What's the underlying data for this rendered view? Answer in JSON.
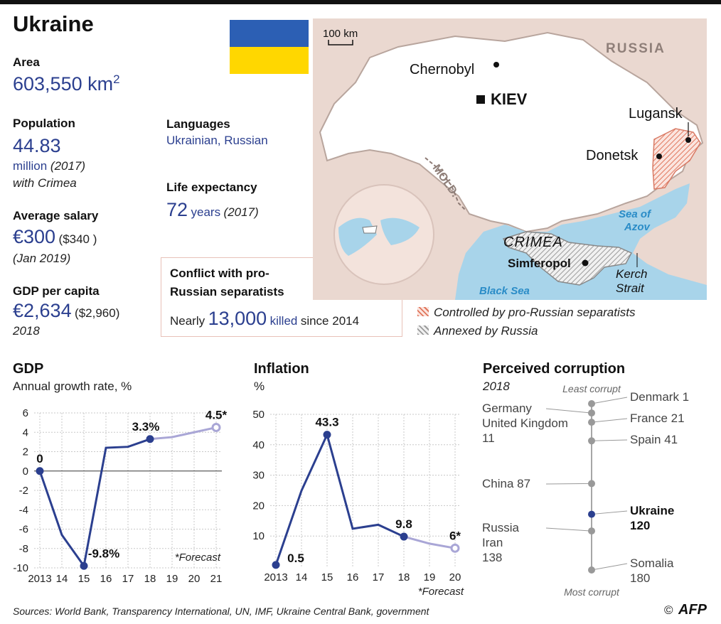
{
  "title": "Ukraine",
  "colors": {
    "accent": "#2b3f8f",
    "forecast": "#a9a6d6",
    "flag_blue": "#2c5fb4",
    "flag_yellow": "#ffd700",
    "sea": "#a8d4ea",
    "land": "#ead8d0"
  },
  "stats": {
    "area_label": "Area",
    "area_value": "603,550 km",
    "area_sup": "2",
    "pop_label": "Population",
    "pop_value": "44.83",
    "pop_unit": "million",
    "pop_year": "(2017)",
    "pop_note": "with Crimea",
    "lang_label": "Languages",
    "lang_value": "Ukrainian, Russian",
    "life_label": "Life expectancy",
    "life_value": "72",
    "life_unit": "years",
    "life_year": "(2017)",
    "salary_label": "Average salary",
    "salary_value": "€300",
    "salary_usd": "($340 )",
    "salary_date": "(Jan 2019)",
    "gdppc_label": "GDP per capita",
    "gdppc_value": "€2,634",
    "gdppc_usd": "($2,960)",
    "gdppc_year": "2018"
  },
  "conflict": {
    "title_line1": "Conflict with pro-",
    "title_line2": "Russian separatists",
    "pre": "Nearly",
    "number": "13,000",
    "killed": "killed",
    "post": "since 2014"
  },
  "map": {
    "scale": "100 km",
    "russia": "RUSSIA",
    "chernobyl": "Chernobyl",
    "kiev": "KIEV",
    "lugansk": "Lugansk",
    "donetsk": "Donetsk",
    "mold": "MOLD.",
    "sea_azov_1": "Sea of",
    "sea_azov_2": "Azov",
    "crimea": "CRIMEA",
    "simferopol": "Simferopol",
    "kerch_1": "Kerch",
    "kerch_2": "Strait",
    "black_sea": "Black Sea",
    "legend_controlled": "Controlled by pro-Russian separatists",
    "legend_annexed": "Annexed by Russia"
  },
  "chart_data": [
    {
      "type": "line",
      "title": "GDP",
      "subtitle": "Annual growth rate, %",
      "x": [
        "2013",
        "14",
        "15",
        "16",
        "17",
        "18",
        "19",
        "20",
        "21"
      ],
      "values": [
        0,
        -6.6,
        -9.8,
        2.4,
        2.5,
        3.3,
        3.5,
        4.0,
        4.5
      ],
      "forecast_from_index": 5,
      "ylim": [
        -10,
        6
      ],
      "yticks": [
        "6",
        "4",
        "2",
        "0",
        "-2",
        "-4",
        "-6",
        "-8",
        "-10"
      ],
      "labels": [
        {
          "index": 0,
          "text": "0"
        },
        {
          "index": 2,
          "text": "-9.8%"
        },
        {
          "index": 5,
          "text": "3.3%"
        },
        {
          "index": 8,
          "text": "4.5*"
        }
      ],
      "note": "*Forecast",
      "grid": true
    },
    {
      "type": "line",
      "title": "Inflation",
      "subtitle": "%",
      "x": [
        "2013",
        "14",
        "15",
        "16",
        "17",
        "18",
        "19",
        "20"
      ],
      "values": [
        0.5,
        24.9,
        43.3,
        12.4,
        13.7,
        9.8,
        7.5,
        6
      ],
      "forecast_from_index": 5,
      "ylim": [
        0,
        50
      ],
      "yticks": [
        "50",
        "40",
        "30",
        "20",
        "10"
      ],
      "labels": [
        {
          "index": 0,
          "text": "0.5"
        },
        {
          "index": 2,
          "text": "43.3"
        },
        {
          "index": 5,
          "text": "9.8"
        },
        {
          "index": 7,
          "text": "6*"
        }
      ],
      "note": "*Forecast",
      "grid": true
    }
  ],
  "corruption": {
    "title": "Perceived corruption",
    "year": "2018",
    "top_label": "Least corrupt",
    "bottom_label": "Most corrupt",
    "entries": [
      {
        "rank": 1,
        "text": "Denmark 1",
        "side": "right",
        "lines": [
          "Denmark 1"
        ]
      },
      {
        "rank": 11,
        "text": "Germany United Kingdom 11",
        "side": "left",
        "lines": [
          "Germany",
          "United Kingdom",
          "11"
        ]
      },
      {
        "rank": 21,
        "text": "France 21",
        "side": "right",
        "lines": [
          "France 21"
        ]
      },
      {
        "rank": 41,
        "text": "Spain 41",
        "side": "right",
        "lines": [
          "Spain 41"
        ]
      },
      {
        "rank": 87,
        "text": "China 87",
        "side": "left",
        "lines": [
          "China 87"
        ]
      },
      {
        "rank": 120,
        "text": "Ukraine 120",
        "side": "right",
        "lines": [
          "Ukraine",
          "120"
        ],
        "highlight": true
      },
      {
        "rank": 138,
        "text": "Russia Iran 138",
        "side": "left",
        "lines": [
          "Russia",
          "Iran",
          "138"
        ]
      },
      {
        "rank": 180,
        "text": "Somalia 180",
        "side": "right",
        "lines": [
          "Somalia",
          "180"
        ]
      }
    ]
  },
  "footer": {
    "sources": "Sources: World Bank, Transparency International, UN, IMF, Ukraine Central Bank, government",
    "copyright": "©",
    "logo": "AFP"
  }
}
